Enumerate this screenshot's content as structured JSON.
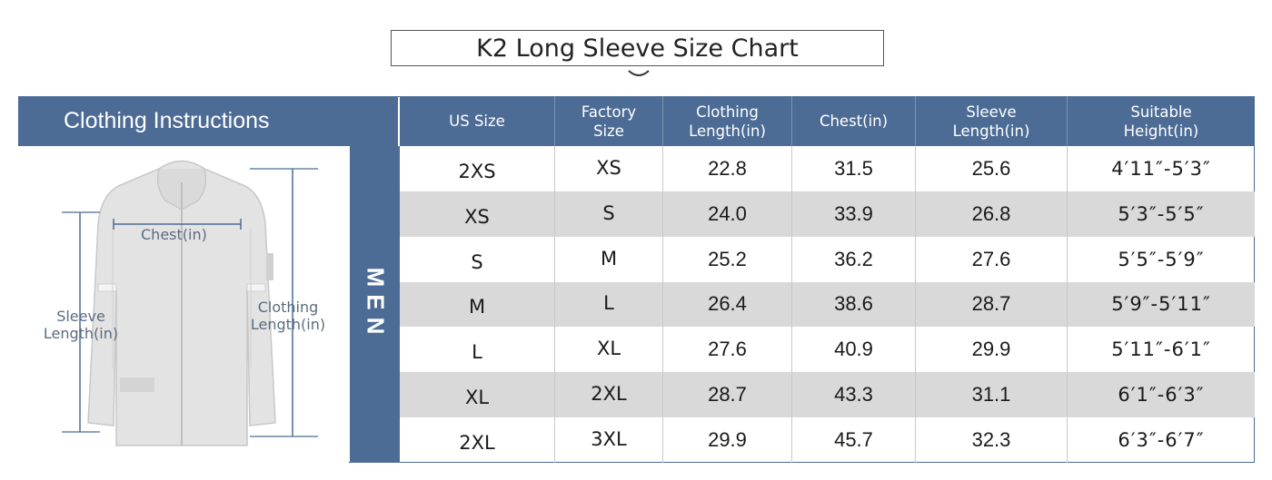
{
  "title": "K2 Long Sleeve Size Chart",
  "colors": {
    "header_bg": "#4d6c95",
    "row_alt": "#d9d9d9",
    "measure_line": "#4d6c95"
  },
  "left_panel": {
    "heading": "Clothing Instructions",
    "labels": {
      "chest": "Chest(in)",
      "sleeve_line1": "Sleeve",
      "sleeve_line2": "Length(in)",
      "clothing_line1": "Clothing",
      "clothing_line2": "Length(in)"
    },
    "image_icon": "jacket-illustration"
  },
  "gender_label": "MEN",
  "table": {
    "columns": [
      "US Size",
      "Factory\nSize",
      "Clothing\nLength(in)",
      "Chest(in)",
      "Sleeve\nLength(in)",
      "Suitable\nHeight(in)"
    ],
    "rows": [
      [
        "2XS",
        "XS",
        "22.8",
        "31.5",
        "25.6",
        "4′11″-5′3″"
      ],
      [
        "XS",
        "S",
        "24.0",
        "33.9",
        "26.8",
        "5′3″-5′5″"
      ],
      [
        "S",
        "M",
        "25.2",
        "36.2",
        "27.6",
        "5′5″-5′9″"
      ],
      [
        "M",
        "L",
        "26.4",
        "38.6",
        "28.7",
        "5′9″-5′11″"
      ],
      [
        "L",
        "XL",
        "27.6",
        "40.9",
        "29.9",
        "5′11″-6′1″"
      ],
      [
        "XL",
        "2XL",
        "28.7",
        "43.3",
        "31.1",
        "6′1″-6′3″"
      ],
      [
        "2XL",
        "3XL",
        "29.9",
        "45.7",
        "32.3",
        "6′3″-6′7″"
      ]
    ]
  }
}
